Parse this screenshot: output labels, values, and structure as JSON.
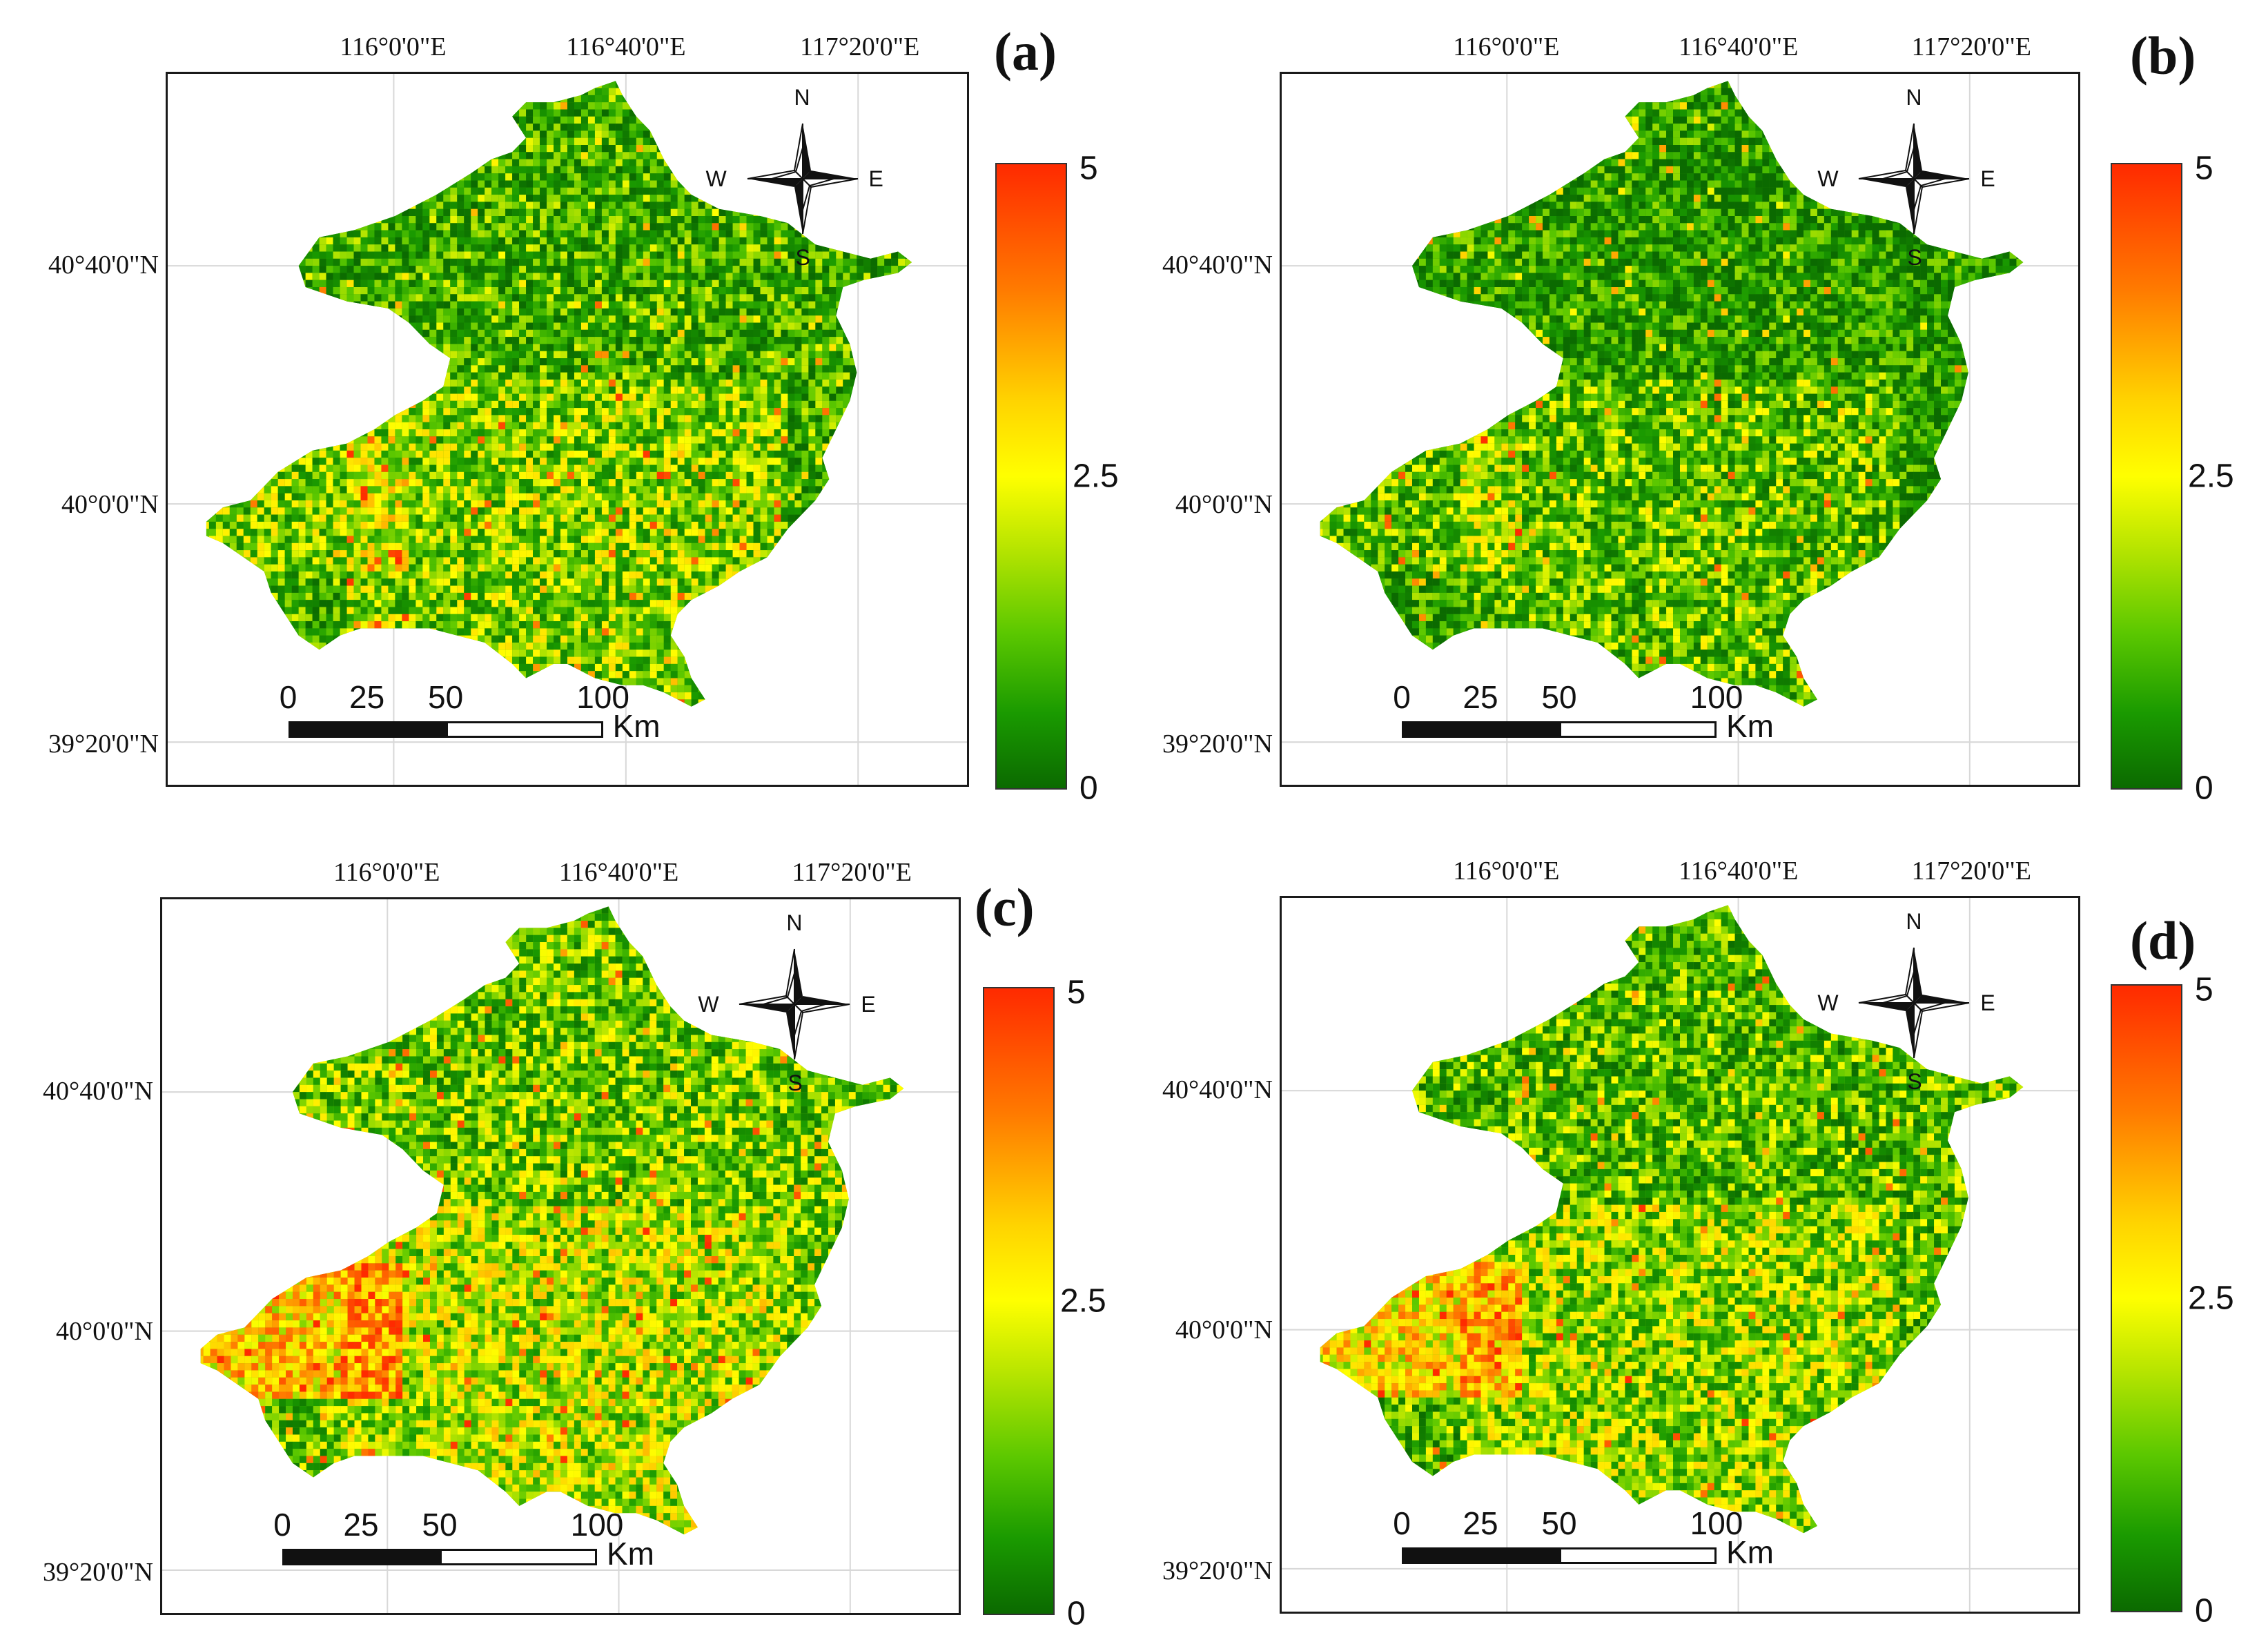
{
  "figure": {
    "panels": [
      {
        "id": "a",
        "label": "(a)",
        "variant": 0
      },
      {
        "id": "b",
        "label": "(b)",
        "variant": 1
      },
      {
        "id": "c",
        "label": "(c)",
        "variant": 2
      },
      {
        "id": "d",
        "label": "(d)",
        "variant": 3
      }
    ],
    "longitude_labels": [
      "116°0'0\"E",
      "116°40'0\"E",
      "117°20'0\"E"
    ],
    "latitude_labels": [
      "40°40'0\"N",
      "40°0'0\"N",
      "39°20'0\"N"
    ],
    "colorbar": {
      "max": "5",
      "mid": "2.5",
      "min": "0",
      "colors": {
        "high": "#ff2a00",
        "mid": "#ffff00",
        "low": "#0b6a00"
      }
    },
    "scale": {
      "ticks": [
        "0",
        "25",
        "50",
        "100"
      ],
      "unit": "Km"
    },
    "compass": {
      "n": "N",
      "s": "S",
      "e": "E",
      "w": "W"
    }
  }
}
